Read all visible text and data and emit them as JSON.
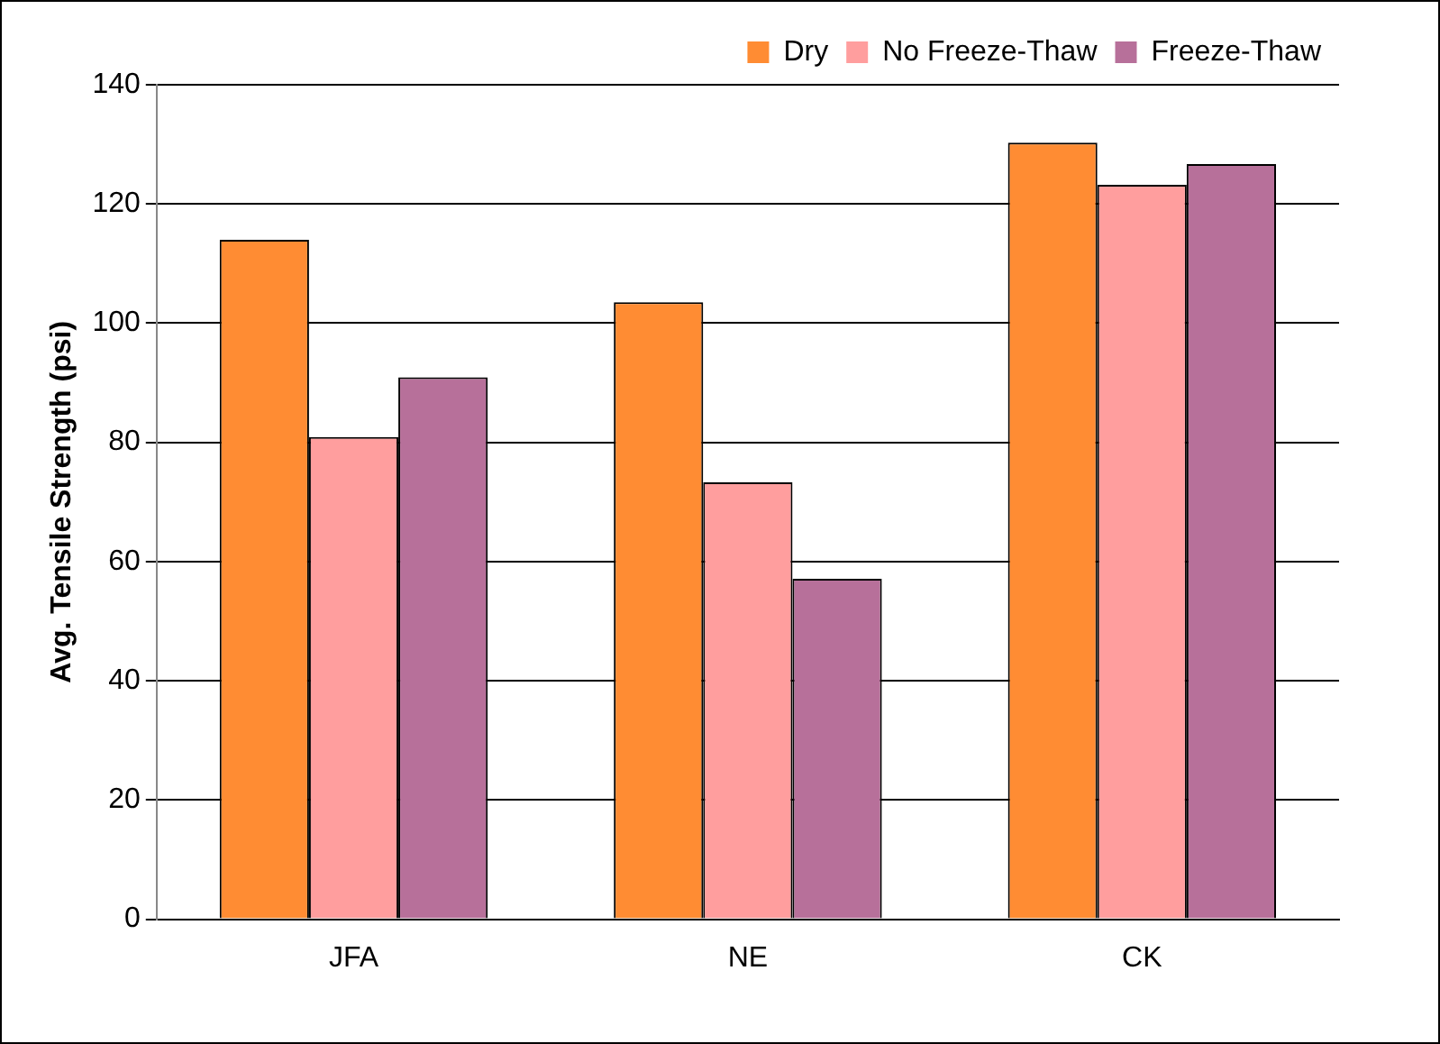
{
  "chart_data": {
    "type": "bar",
    "ylabel": "Avg. Tensile Strength (psi)",
    "categories": [
      "JFA",
      "NE",
      "CK"
    ],
    "series": [
      {
        "name": "Dry",
        "color": "#ff8c33",
        "values": [
          114,
          103.5,
          130.3
        ]
      },
      {
        "name": "No Freeze-Thaw",
        "color": "#ff9e9e",
        "values": [
          80.9,
          73.3,
          123.2
        ]
      },
      {
        "name": "Freeze-Thaw",
        "color": "#b7709a",
        "values": [
          90.9,
          57.1,
          126.7
        ]
      }
    ],
    "ylim": [
      0,
      140
    ],
    "yticks": [
      0,
      20,
      40,
      60,
      80,
      100,
      120,
      140
    ],
    "grid": "y",
    "legend": "top right"
  }
}
